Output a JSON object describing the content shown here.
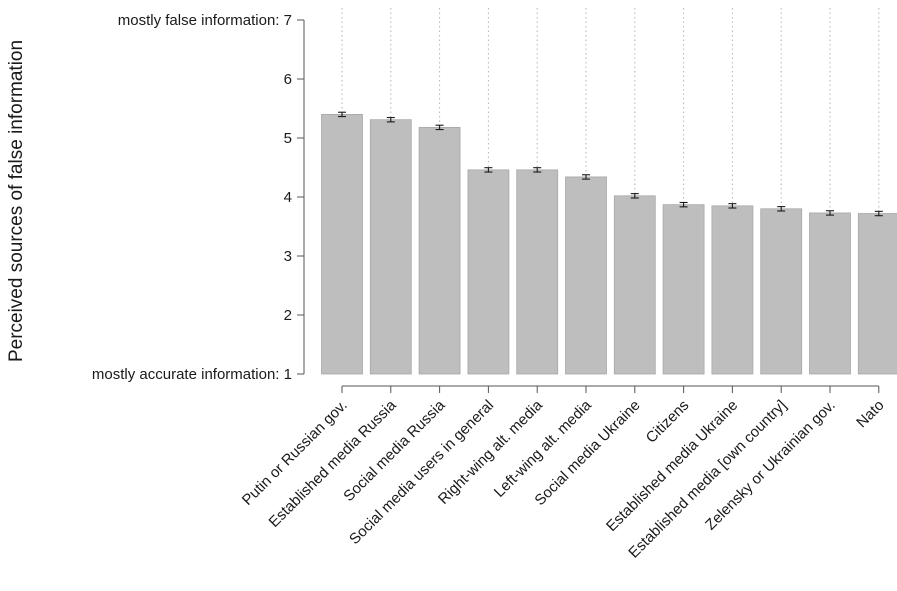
{
  "chart_data": {
    "type": "bar",
    "title": "",
    "xlabel": "",
    "ylabel": "Perceived sources of false information",
    "ylim": [
      1,
      7
    ],
    "grid": "vertical dotted lines at categories",
    "yticks": [
      {
        "value": 1,
        "label": "mostly accurate information: 1"
      },
      {
        "value": 2,
        "label": "2"
      },
      {
        "value": 3,
        "label": "3"
      },
      {
        "value": 4,
        "label": "4"
      },
      {
        "value": 5,
        "label": "5"
      },
      {
        "value": 6,
        "label": "6"
      },
      {
        "value": 7,
        "label": "mostly false information: 7"
      }
    ],
    "categories": [
      "Putin or Russian gov.",
      "Established media Russia",
      "Social media Russia",
      "Social media users in general",
      "Right-wing alt. media",
      "Left-wing alt. media",
      "Social media Ukraine",
      "Citizens",
      "Established media Ukraine",
      "Established media [own country]",
      "Zelensky or Ukrainian gov.",
      "Nato"
    ],
    "values": [
      5.4,
      5.31,
      5.18,
      4.46,
      4.46,
      4.34,
      4.02,
      3.87,
      3.85,
      3.8,
      3.73,
      3.72
    ],
    "error": [
      0.02,
      0.02,
      0.02,
      0.02,
      0.02,
      0.02,
      0.02,
      0.02,
      0.02,
      0.02,
      0.02,
      0.02
    ],
    "colors": {
      "bar": "#bebebe",
      "bar_edge": "#a8a8a8",
      "error": "#1a1a1a",
      "grid": "#b5b5b5",
      "axis": "#555555"
    }
  }
}
